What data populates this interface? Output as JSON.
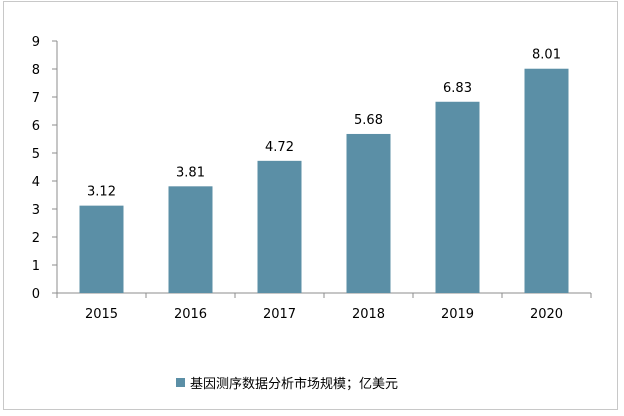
{
  "chart_data": {
    "type": "bar",
    "categories": [
      "2015",
      "2016",
      "2017",
      "2018",
      "2019",
      "2020"
    ],
    "series": [
      {
        "name": "基因测序数据分析市场规模；亿美元",
        "values": [
          3.12,
          3.81,
          4.72,
          5.68,
          6.83,
          8.01
        ]
      }
    ],
    "data_labels": [
      "3.12",
      "3.81",
      "4.72",
      "5.68",
      "6.83",
      "8.01"
    ],
    "y_ticks": [
      "0",
      "1",
      "2",
      "3",
      "4",
      "5",
      "6",
      "7",
      "8",
      "9"
    ],
    "ylim": [
      0,
      9
    ],
    "grid": false,
    "legend_position": "bottom",
    "title": "",
    "xlabel": "",
    "ylabel": ""
  },
  "colors": {
    "bar": "#5b8fa6",
    "axis": "#8c8c8c",
    "frame": "#c8c8c8"
  }
}
